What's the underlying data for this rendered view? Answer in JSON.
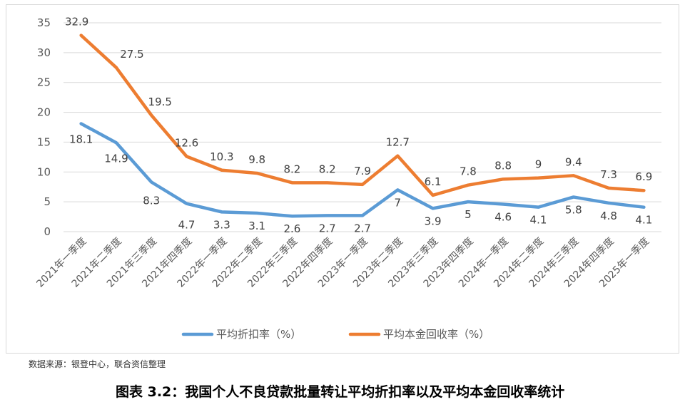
{
  "chart_data": {
    "type": "line",
    "categories": [
      "2021年一季度",
      "2021年二季度",
      "2021年三季度",
      "2021年四季度",
      "2022年一季度",
      "2022年二季度",
      "2022年三季度",
      "2022年四季度",
      "2023年一季度",
      "2023年二季度",
      "2023年三季度",
      "2023年四季度",
      "2024年一季度",
      "2024年二季度",
      "2024年三季度",
      "2024年四季度",
      "2025年一季度"
    ],
    "series": [
      {
        "name": "平均折扣率（%）",
        "color": "#5b9bd5",
        "values": [
          18.1,
          14.9,
          8.3,
          4.7,
          3.3,
          3.1,
          2.6,
          2.7,
          2.7,
          7,
          3.9,
          5,
          4.6,
          4.1,
          5.8,
          4.8,
          4.1
        ]
      },
      {
        "name": "平均本金回收率（%）",
        "color": "#ed7d31",
        "values": [
          32.9,
          27.5,
          19.5,
          12.6,
          10.3,
          9.8,
          8.2,
          8.2,
          7.9,
          12.7,
          6.1,
          7.8,
          8.8,
          9,
          9.4,
          7.3,
          6.9
        ]
      }
    ],
    "ylim": [
      0,
      35
    ],
    "yticks": [
      0,
      5,
      10,
      15,
      20,
      25,
      30,
      35
    ],
    "grid": true,
    "legend": "bottom"
  },
  "source_note": "数据来源：银登中心，联合资信整理",
  "caption": "图表 3.2：我国个人不良贷款批量转让平均折扣率以及平均本金回收率统计"
}
